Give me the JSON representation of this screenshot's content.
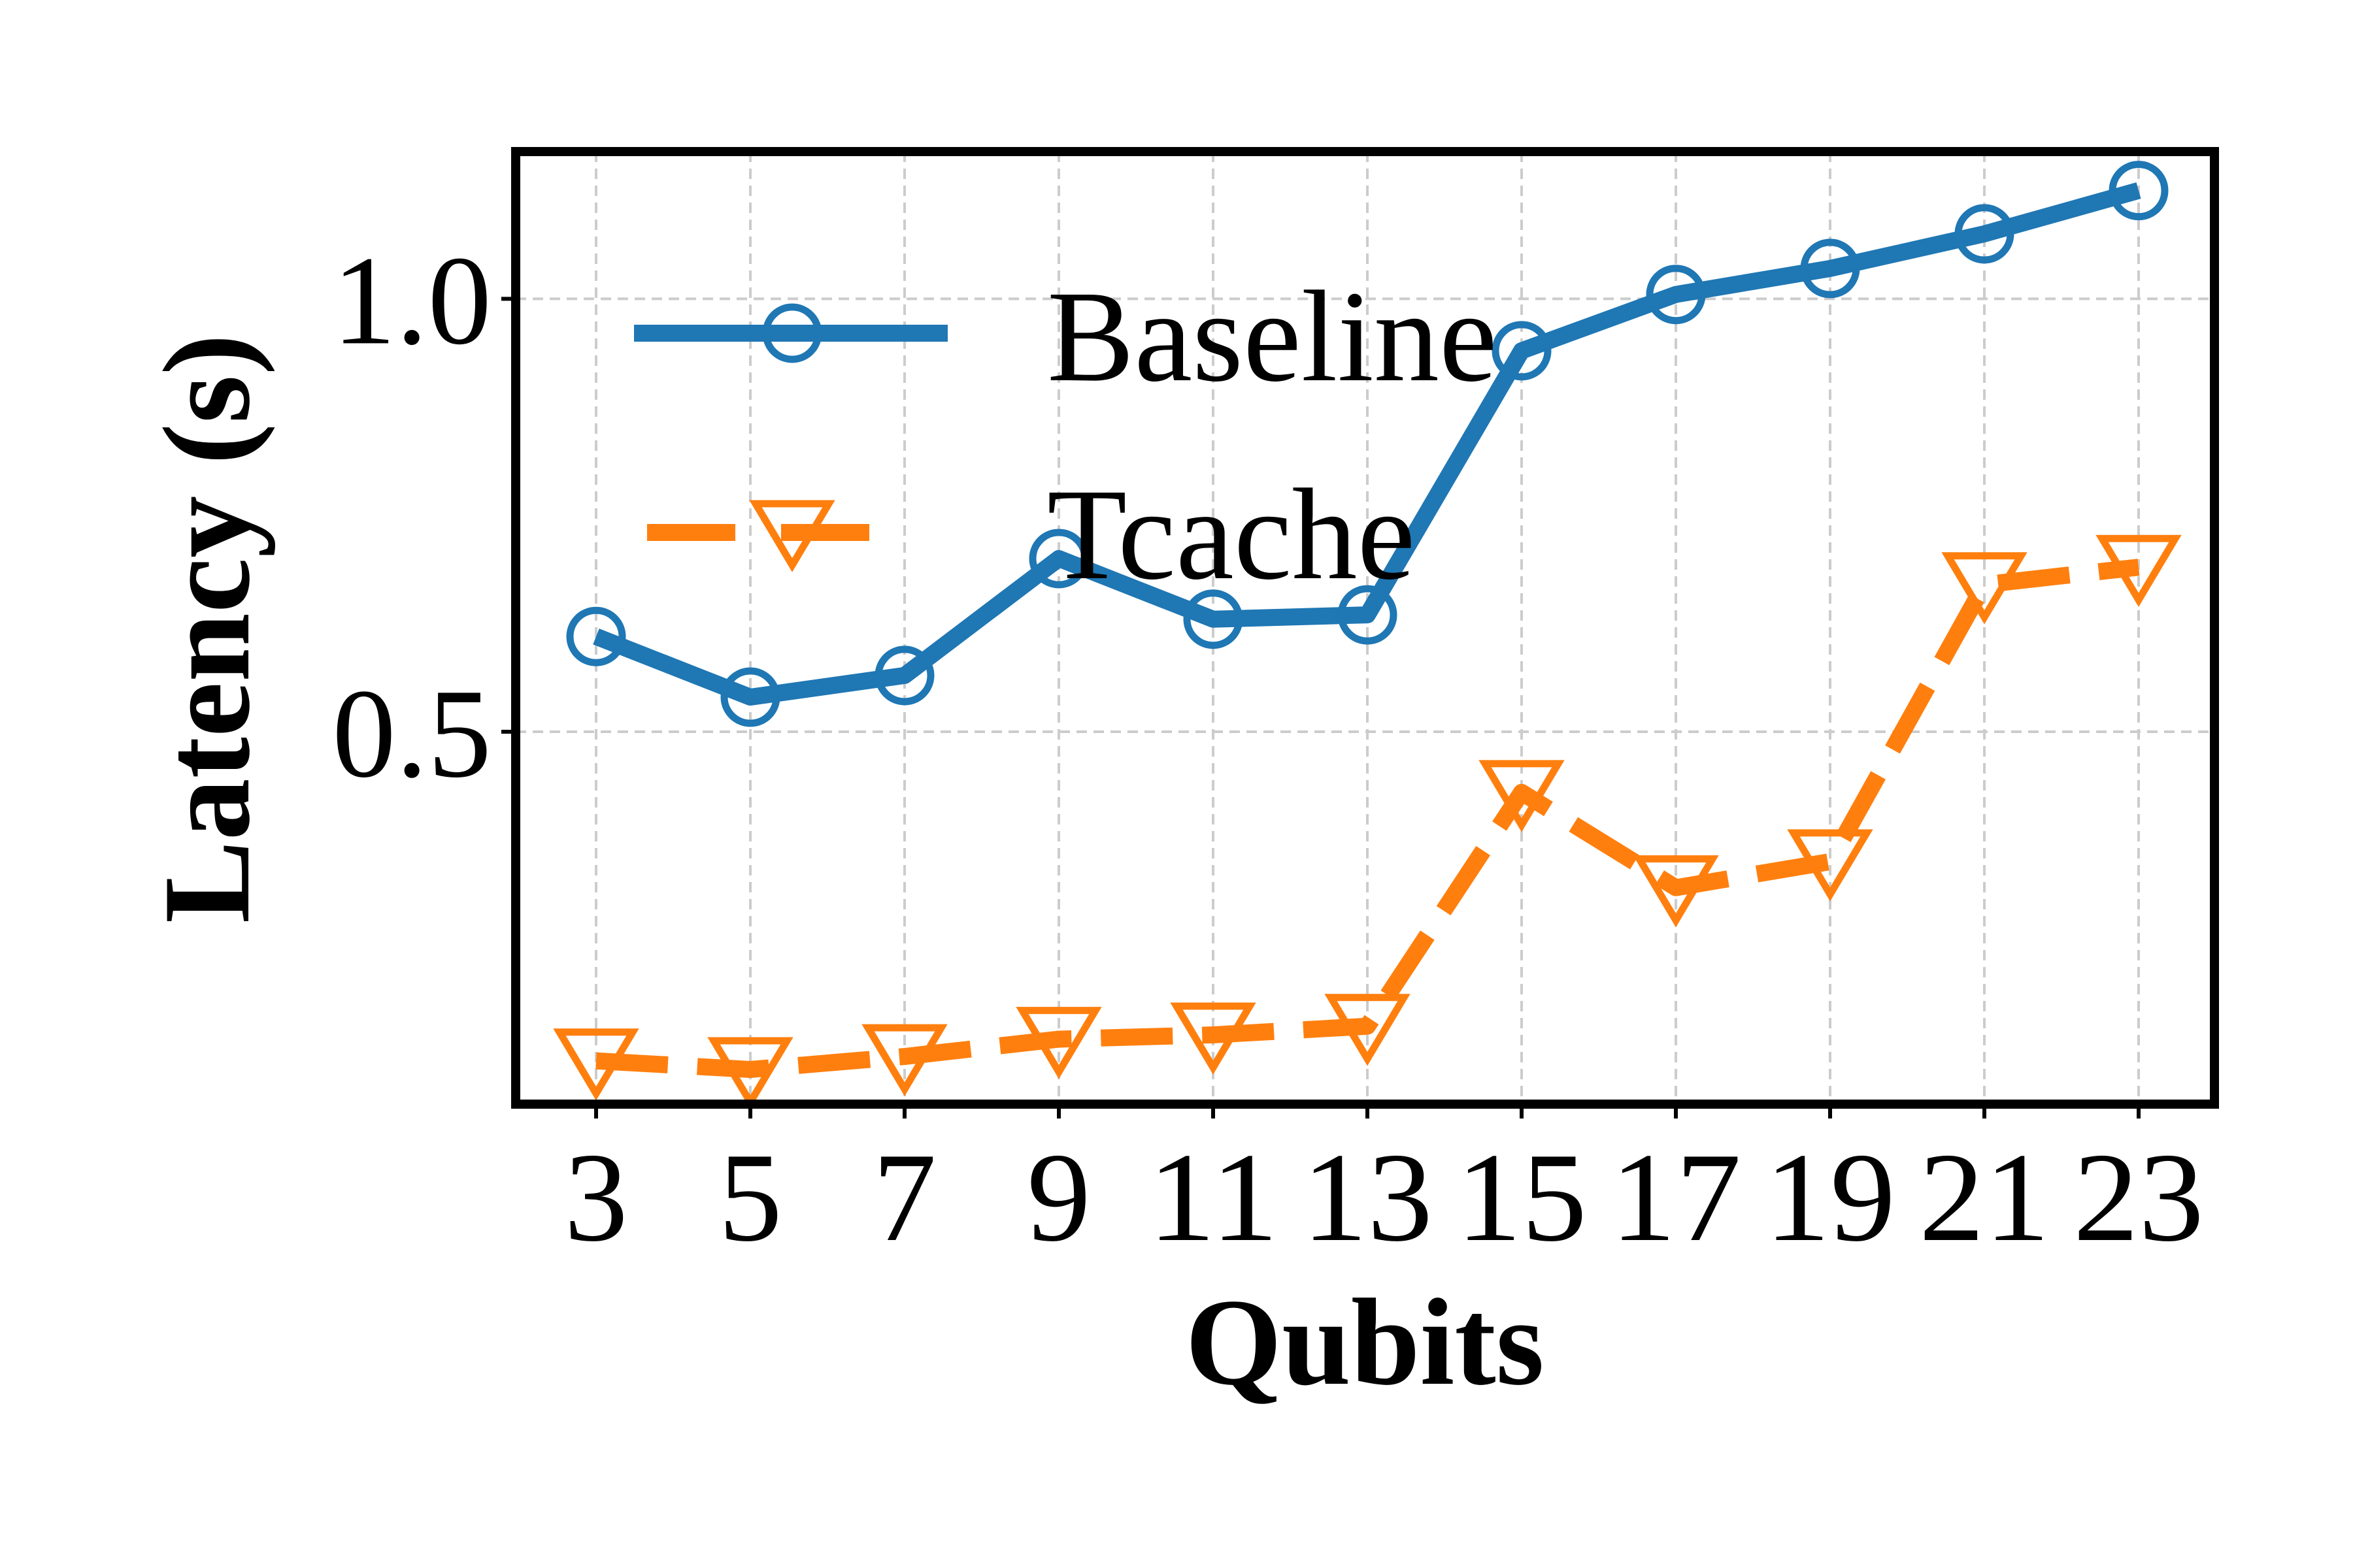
{
  "chart_data": {
    "type": "line",
    "xlabel": "Qubits",
    "ylabel": "Latency (s)",
    "categories": [
      "3",
      "5",
      "7",
      "9",
      "11",
      "13",
      "15",
      "17",
      "19",
      "21",
      "23"
    ],
    "yticks": [
      {
        "value": 0.5,
        "label": "0.5"
      },
      {
        "value": 1.0,
        "label": "1.0"
      }
    ],
    "ylim": [
      0.07,
      1.17
    ],
    "grid": true,
    "legend_position": "upper-left",
    "series": [
      {
        "name": "Baseline",
        "color": "#1f77b4",
        "marker": "circle",
        "line_style": "solid",
        "values": [
          0.61,
          0.54,
          0.565,
          0.7,
          0.63,
          0.635,
          0.94,
          1.005,
          1.035,
          1.075,
          1.125
        ]
      },
      {
        "name": "Tcache",
        "color": "#ff7f0e",
        "marker": "triangle-down",
        "line_style": "dashed",
        "values": [
          0.12,
          0.11,
          0.125,
          0.145,
          0.15,
          0.16,
          0.43,
          0.32,
          0.35,
          0.67,
          0.69
        ]
      }
    ]
  }
}
